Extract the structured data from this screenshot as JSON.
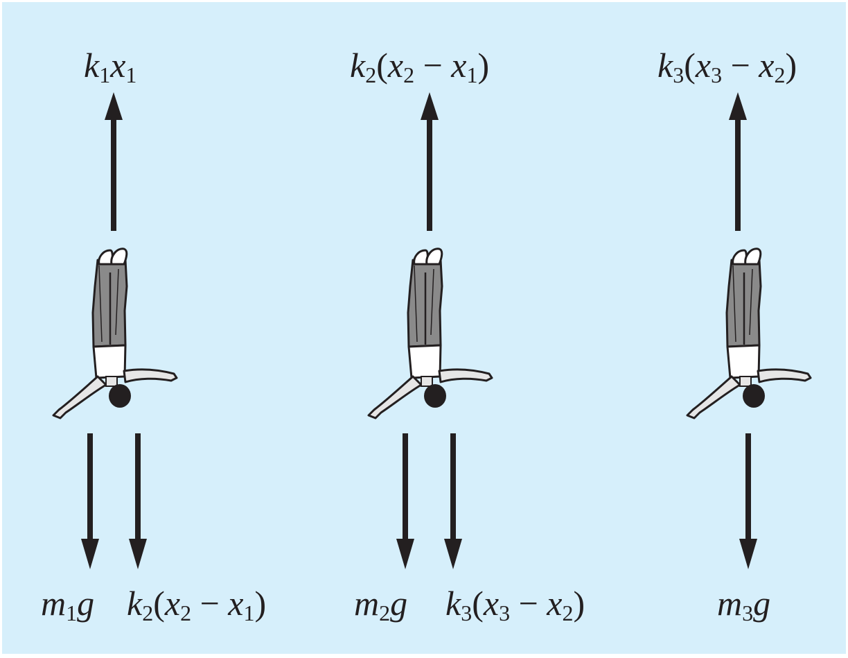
{
  "jumpers": [
    {
      "name": "jumper-1",
      "up_force": [
        {
          "t": "k"
        },
        {
          "t": "1",
          "sub": true
        },
        {
          "t": "x"
        },
        {
          "t": "1",
          "sub": true
        }
      ],
      "down_forces": [
        [
          {
            "t": "m"
          },
          {
            "t": "1",
            "sub": true
          },
          {
            "t": "g"
          }
        ],
        [
          {
            "t": "k"
          },
          {
            "t": "2",
            "sub": true
          },
          {
            "t": "(",
            "op": true
          },
          {
            "t": "x"
          },
          {
            "t": "2",
            "sub": true
          },
          {
            "t": " − ",
            "op": true
          },
          {
            "t": "x"
          },
          {
            "t": "1",
            "sub": true
          },
          {
            "t": ")",
            "op": true
          }
        ]
      ]
    },
    {
      "name": "jumper-2",
      "up_force": [
        {
          "t": "k"
        },
        {
          "t": "2",
          "sub": true
        },
        {
          "t": "(",
          "op": true
        },
        {
          "t": "x"
        },
        {
          "t": "2",
          "sub": true
        },
        {
          "t": " − ",
          "op": true
        },
        {
          "t": "x"
        },
        {
          "t": "1",
          "sub": true
        },
        {
          "t": ")",
          "op": true
        }
      ],
      "down_forces": [
        [
          {
            "t": "m"
          },
          {
            "t": "2",
            "sub": true
          },
          {
            "t": "g"
          }
        ],
        [
          {
            "t": "k"
          },
          {
            "t": "3",
            "sub": true
          },
          {
            "t": "(",
            "op": true
          },
          {
            "t": "x"
          },
          {
            "t": "3",
            "sub": true
          },
          {
            "t": " − ",
            "op": true
          },
          {
            "t": "x"
          },
          {
            "t": "2",
            "sub": true
          },
          {
            "t": ")",
            "op": true
          }
        ]
      ]
    },
    {
      "name": "jumper-3",
      "up_force": [
        {
          "t": "k"
        },
        {
          "t": "3",
          "sub": true
        },
        {
          "t": "(",
          "op": true
        },
        {
          "t": "x"
        },
        {
          "t": "3",
          "sub": true
        },
        {
          "t": " − ",
          "op": true
        },
        {
          "t": "x"
        },
        {
          "t": "2",
          "sub": true
        },
        {
          "t": ")",
          "op": true
        }
      ],
      "down_forces": [
        [
          {
            "t": "m"
          },
          {
            "t": "3",
            "sub": true
          },
          {
            "t": "g"
          }
        ]
      ]
    }
  ],
  "colors": {
    "background": "#d6effb",
    "ink": "#231f20",
    "pants": "#8a8a8a",
    "shirt": "#ffffff",
    "skin": "#e6e6e6"
  }
}
